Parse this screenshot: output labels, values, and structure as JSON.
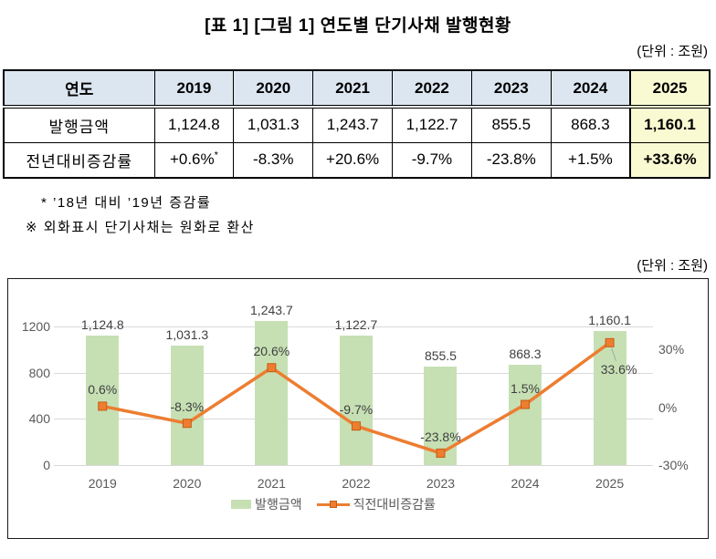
{
  "title": "[표 1] [그림 1] 연도별 단기사채 발행현황",
  "table_section": {
    "unit_label": "(단위 : 조원)",
    "header": [
      "연도",
      "2019",
      "2020",
      "2021",
      "2022",
      "2023",
      "2024",
      "2025"
    ],
    "rows": [
      {
        "label": "발행금액",
        "values": [
          "1,124.8",
          "1,031.3",
          "1,243.7",
          "1,122.7",
          "855.5",
          "868.3",
          "1,160.1"
        ],
        "sup": [
          "",
          "",
          "",
          "",
          "",
          "",
          ""
        ]
      },
      {
        "label": "전년대비증감률",
        "values": [
          "+0.6%",
          "-8.3%",
          "+20.6%",
          "-9.7%",
          "-23.8%",
          "+1.5%",
          "+33.6%"
        ],
        "sup": [
          "*",
          "",
          "",
          "",
          "",
          "",
          ""
        ]
      }
    ],
    "highlight_column": "2025",
    "footnotes": [
      "*  ’18년 대비 ’19년 증감률",
      "※  외화표시 단기사채는 원화로 환산"
    ]
  },
  "chart_section": {
    "unit_label": "(단위 : 조원)",
    "chart_data": {
      "type": "combo-bar-line",
      "categories": [
        "2019",
        "2020",
        "2021",
        "2022",
        "2023",
        "2024",
        "2025"
      ],
      "series": [
        {
          "name": "발행금액",
          "type": "bar",
          "axis": "left",
          "color": "#c6e0b4",
          "values": [
            1124.8,
            1031.3,
            1243.7,
            1122.7,
            855.5,
            868.3,
            1160.1
          ],
          "labels": [
            "1,124.8",
            "1,031.3",
            "1,243.7",
            "1,122.7",
            "855.5",
            "868.3",
            "1,160.1"
          ]
        },
        {
          "name": "직전대비증감률",
          "type": "line",
          "axis": "right",
          "color": "#ed7d31",
          "values": [
            0.6,
            -8.3,
            20.6,
            -9.7,
            -23.8,
            1.5,
            33.6
          ],
          "labels": [
            "0.6%",
            "-8.3%",
            "20.6%",
            "-9.7%",
            "-23.8%",
            "1.5%",
            "33.6%"
          ]
        }
      ],
      "left_axis": {
        "max": 1200,
        "ticks": [
          {
            "label": "0",
            "value": 0
          },
          {
            "label": "400",
            "value": 400
          },
          {
            "label": "800",
            "value": 800
          },
          {
            "label": "1200",
            "value": 1200
          }
        ]
      },
      "right_axis": {
        "min": -30,
        "max": 30,
        "ticks": [
          {
            "label": "30%",
            "value": 30
          },
          {
            "label": "0%",
            "value": 0
          },
          {
            "label": "-30%",
            "value": -30
          }
        ]
      },
      "legend": [
        {
          "label": "발행금액",
          "type": "bar"
        },
        {
          "label": "직전대비증감률",
          "type": "line"
        }
      ],
      "grid": true,
      "legend_position": "bottom"
    }
  }
}
